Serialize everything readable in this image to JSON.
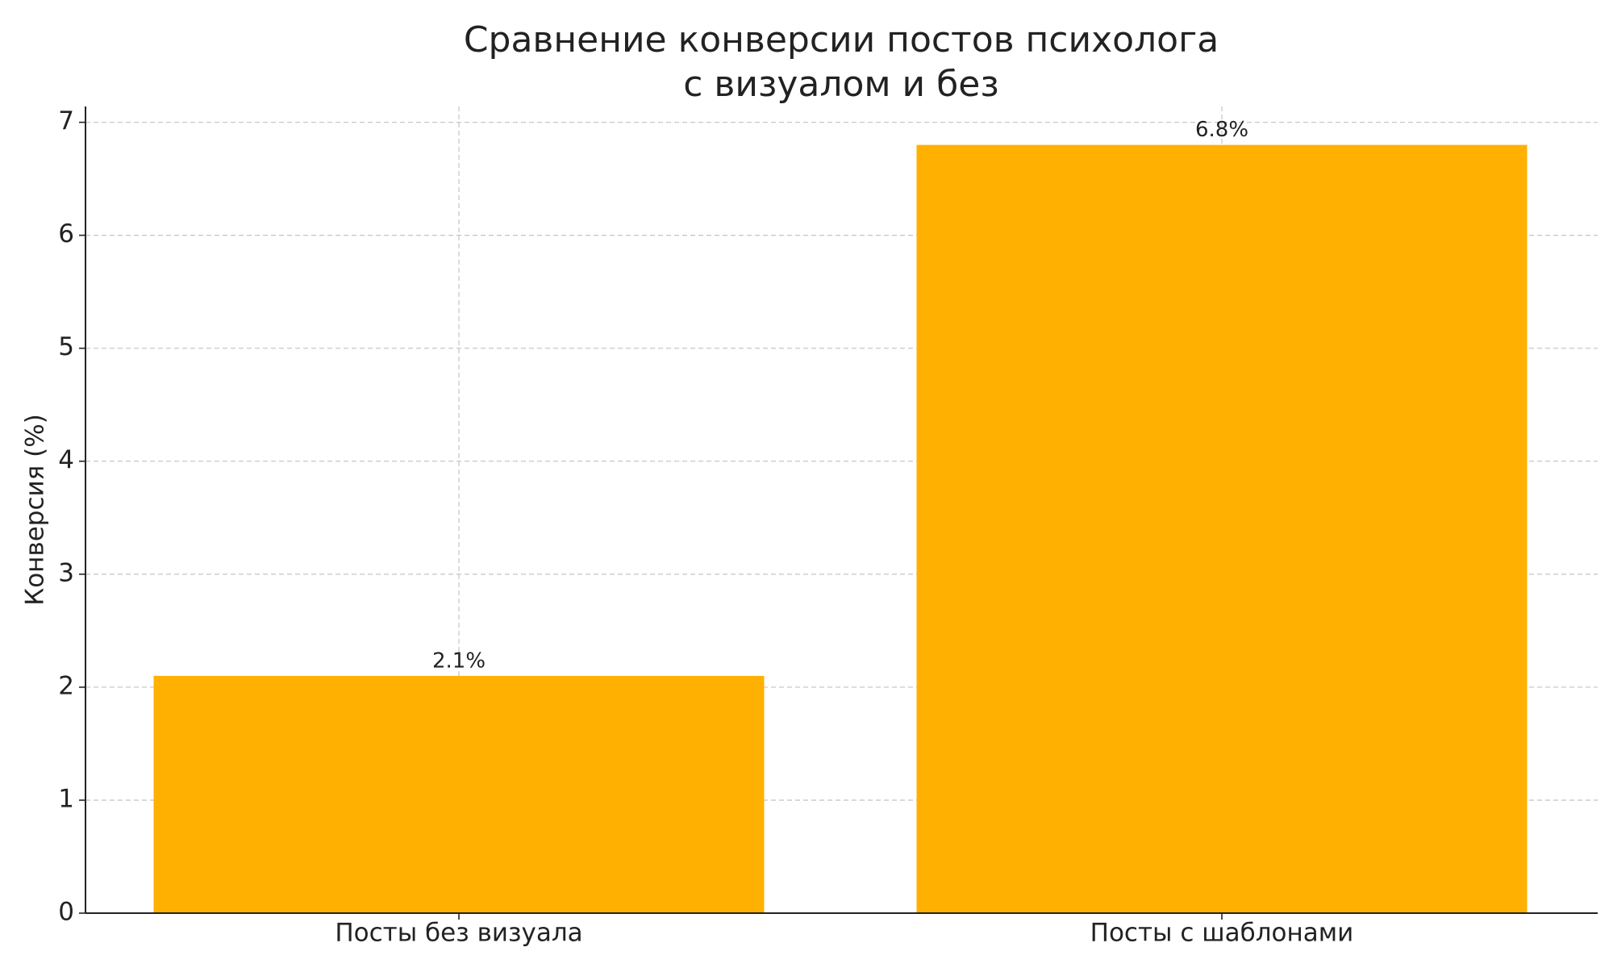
{
  "chart_data": {
    "type": "bar",
    "title": "Сравнение конверсии постов психолога\nс визуалом и без",
    "ylabel": "Конверсия (%)",
    "categories": [
      "Посты без визуала",
      "Посты с шаблонами"
    ],
    "values": [
      2.1,
      6.8
    ],
    "value_labels": [
      "2.1%",
      "6.8%"
    ],
    "color": "#ffb000",
    "ylim": [
      0,
      7.14
    ],
    "yticks": [
      0,
      1,
      2,
      3,
      4,
      5,
      6,
      7
    ],
    "grid": true
  }
}
